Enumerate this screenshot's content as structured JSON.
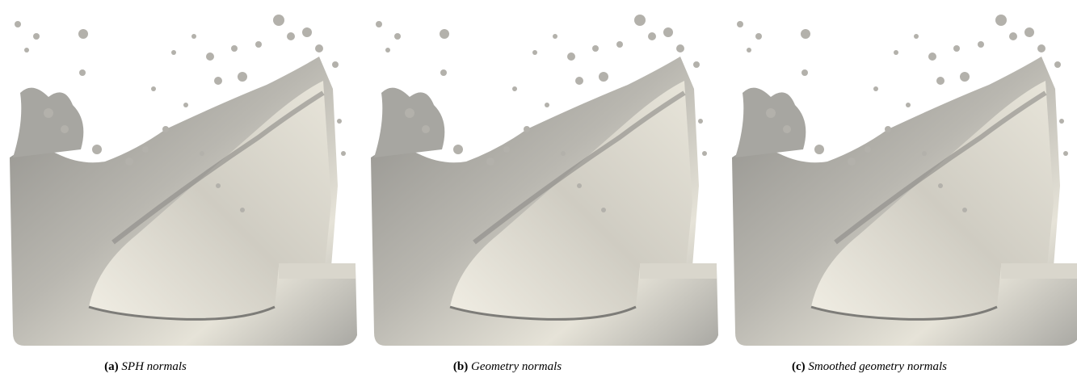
{
  "figure": {
    "panels": [
      {
        "label": "(a)",
        "caption": "SPH normals"
      },
      {
        "label": "(b)",
        "caption": "Geometry normals"
      },
      {
        "label": "(c)",
        "caption": "Smoothed geometry normals"
      }
    ]
  }
}
